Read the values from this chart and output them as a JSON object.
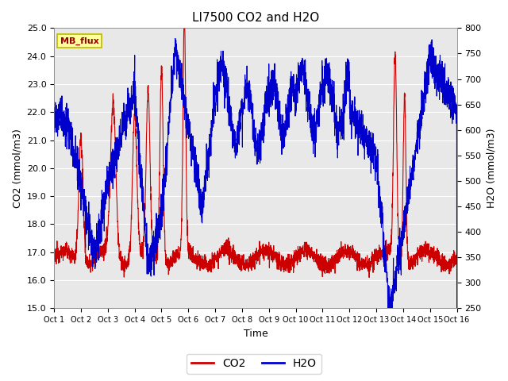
{
  "title": "LI7500 CO2 and H2O",
  "xlabel": "Time",
  "ylabel_left": "CO2 (mmol/m3)",
  "ylabel_right": "H2O (mmol/m3)",
  "ylim_left": [
    15.0,
    25.0
  ],
  "ylim_right": [
    250,
    800
  ],
  "yticks_left": [
    15.0,
    16.0,
    17.0,
    18.0,
    19.0,
    20.0,
    21.0,
    22.0,
    23.0,
    24.0,
    25.0
  ],
  "yticks_right": [
    250,
    300,
    350,
    400,
    450,
    500,
    550,
    600,
    650,
    700,
    750,
    800
  ],
  "xtick_labels": [
    "Oct 1",
    "Oct 2",
    "Oct 3",
    "Oct 4",
    "Oct 5",
    "Oct 6",
    "Oct 7",
    "Oct 8",
    "Oct 9",
    "Oct 10",
    "Oct 11",
    "Oct 12",
    "Oct 13",
    "Oct 14",
    "Oct 15",
    "Oct 16"
  ],
  "color_co2": "#cc0000",
  "color_h2o": "#0000cc",
  "legend_label_co2": "CO2",
  "legend_label_h2o": "H2O",
  "annotation_text": "MB_flux",
  "annotation_bg": "#ffff99",
  "annotation_border": "#bbbb00",
  "fig_bg": "#ffffff",
  "plot_bg": "#e8e8e8",
  "grid_color": "#ffffff",
  "linewidth": 0.8,
  "n_points": 3000
}
